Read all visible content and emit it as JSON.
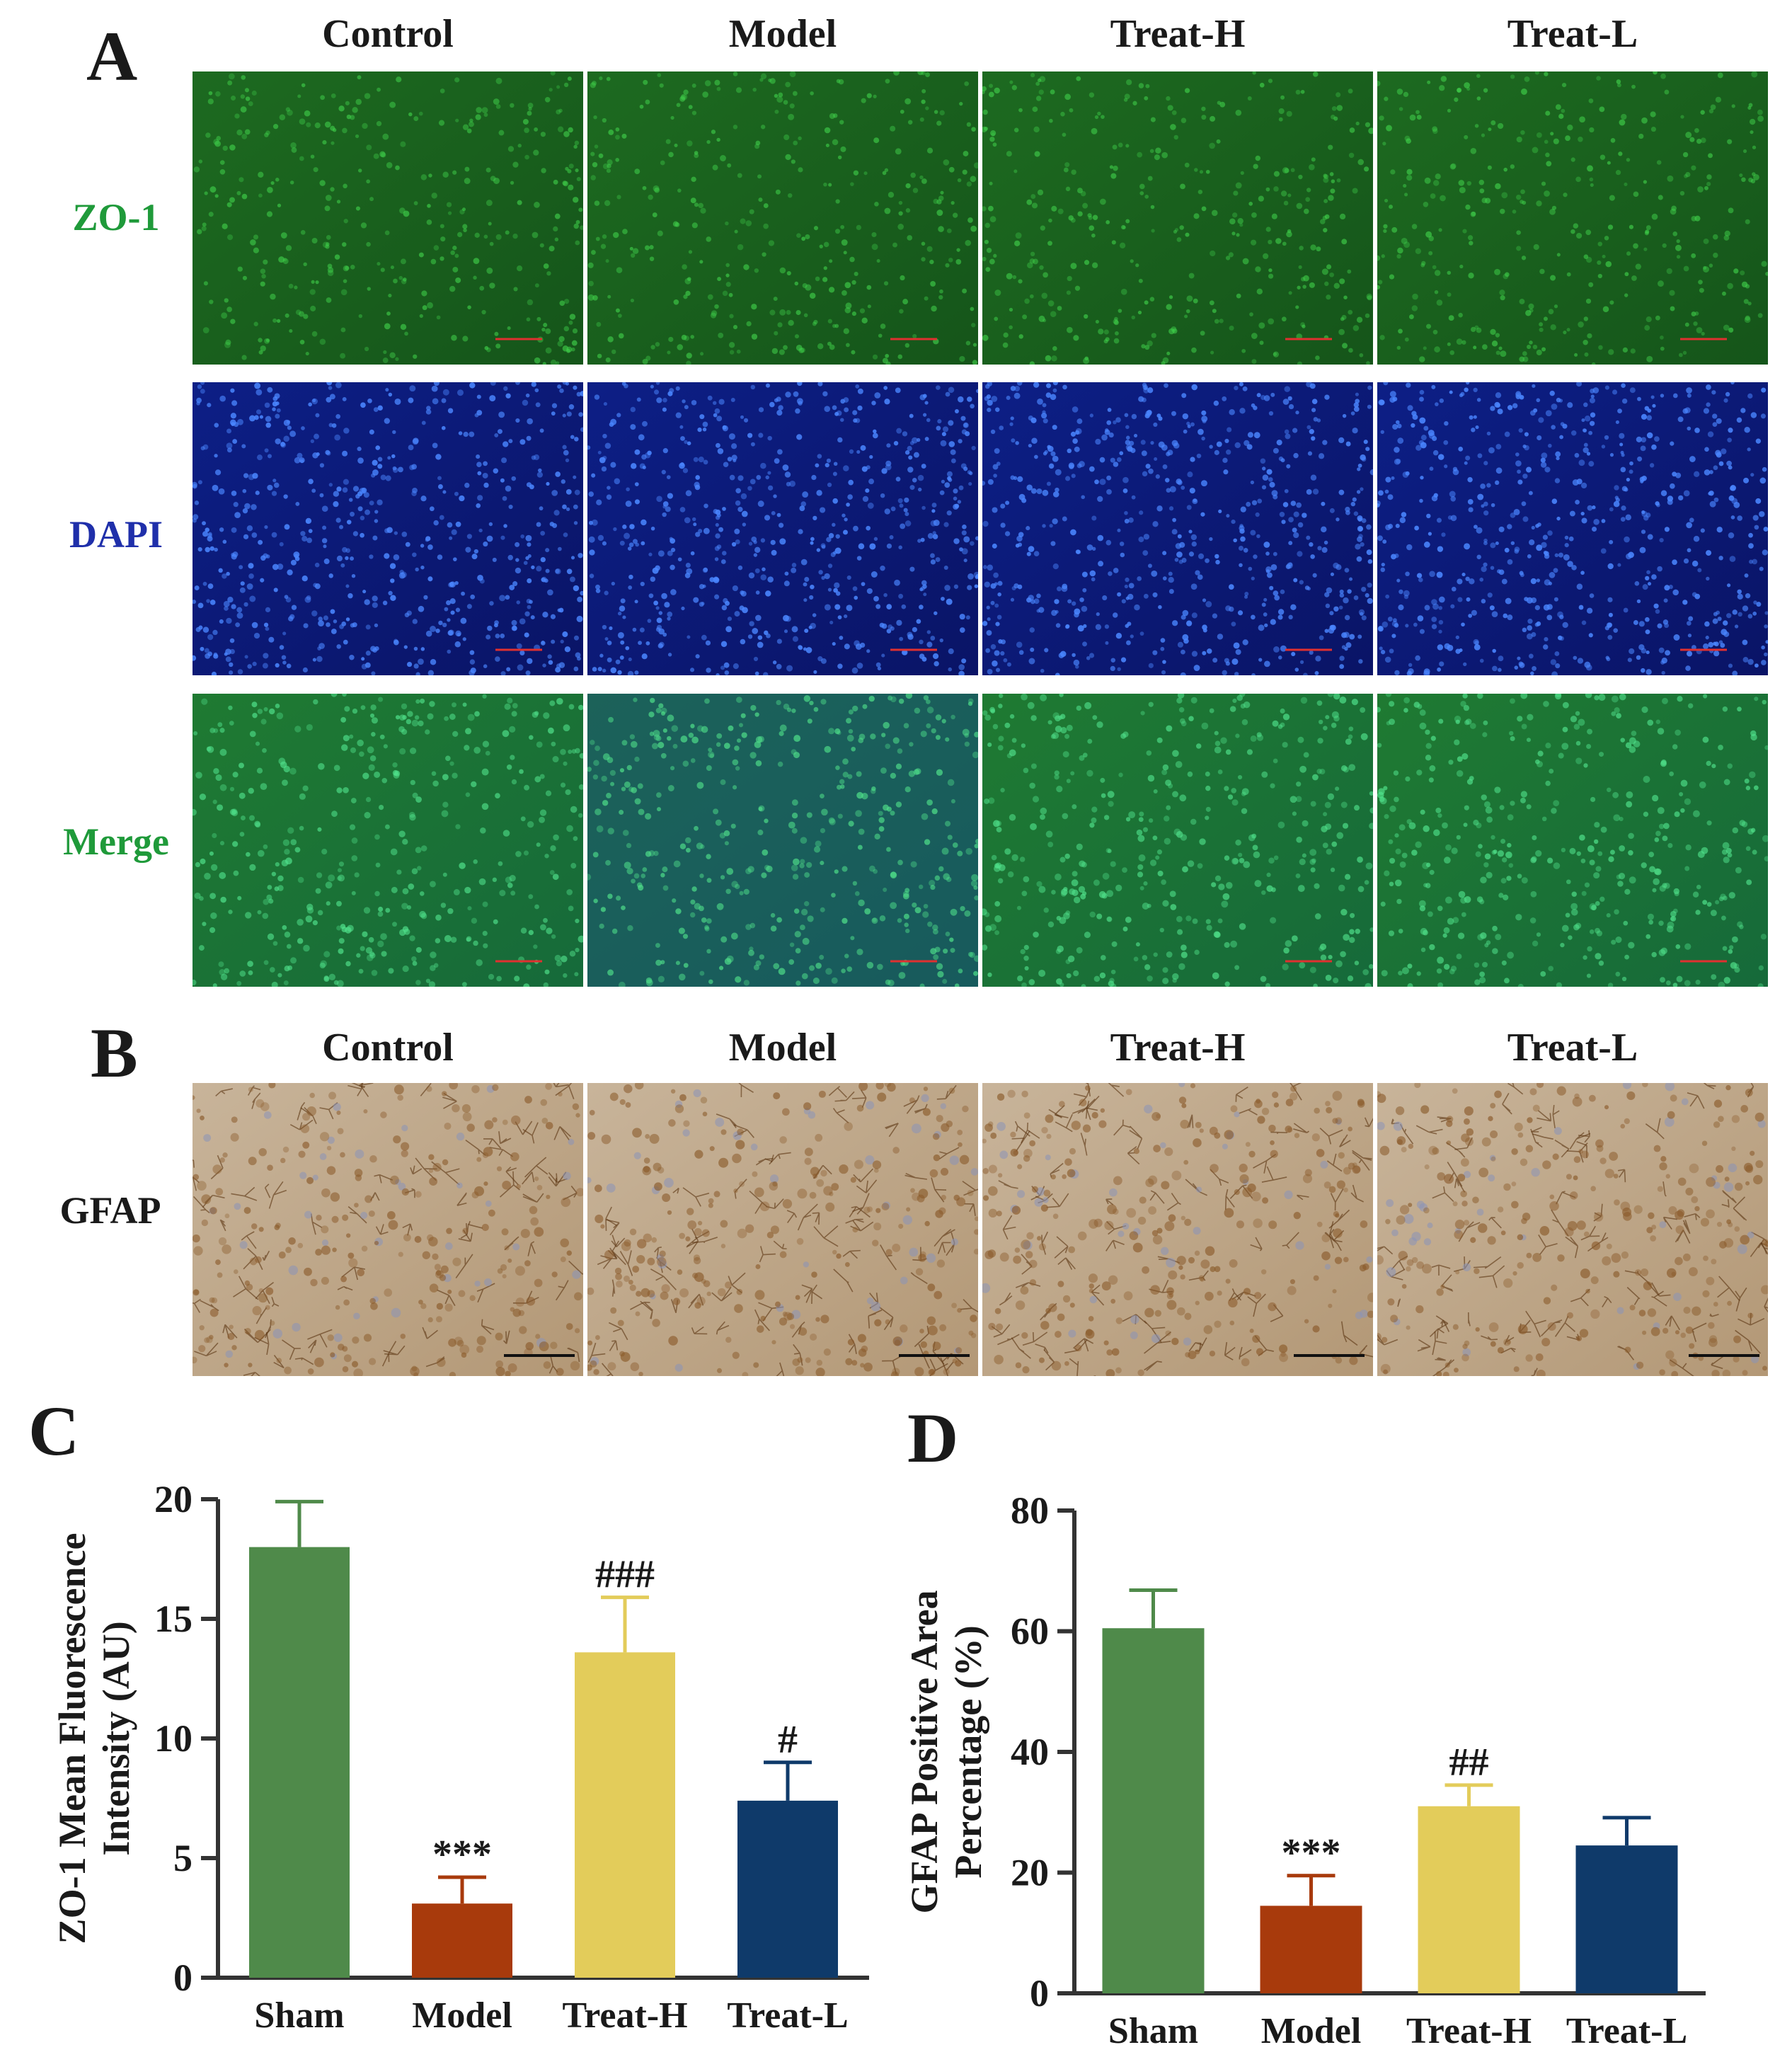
{
  "panel_a": {
    "letter": "A",
    "columns": [
      "Control",
      "Model",
      "Treat-H",
      "Treat-L"
    ],
    "rows": [
      {
        "label": "ZO-1",
        "label_color": "#1f9a3a",
        "stain": "green"
      },
      {
        "label": "DAPI",
        "label_color": "#1f2faa",
        "stain": "blue"
      },
      {
        "label": "Merge",
        "label_color": "#1f9a3a",
        "stain": "merge"
      }
    ]
  },
  "panel_b": {
    "letter": "B",
    "columns": [
      "Control",
      "Model",
      "Treat-H",
      "Treat-L"
    ],
    "rows": [
      {
        "label": "GFAP",
        "label_color": "#1a1a1a",
        "stain": "ihc"
      }
    ]
  },
  "colors": {
    "sham": "#4f8a4a",
    "model": "#a83a0c",
    "treat_h": "#e3cc5a",
    "treat_l": "#0f3a6a"
  },
  "chart_data": [
    {
      "panel_letter": "C",
      "type": "bar",
      "categories": [
        "Sham",
        "Model",
        "Treat-H",
        "Treat-L"
      ],
      "values": [
        18.0,
        3.1,
        13.6,
        7.4
      ],
      "errors": [
        1.9,
        1.1,
        2.3,
        1.6
      ],
      "annotations": [
        "",
        "***",
        "###",
        "#"
      ],
      "ylabel": "ZO-1 Mean Fluorescence Intensity (AU)",
      "ylim": [
        0,
        20
      ],
      "yticks": [
        0,
        5,
        10,
        15,
        20
      ],
      "grid": false
    },
    {
      "panel_letter": "D",
      "type": "bar",
      "categories": [
        "Sham",
        "Model",
        "Treat-H",
        "Treat-L"
      ],
      "values": [
        60.5,
        14.5,
        31.0,
        24.5
      ],
      "errors": [
        6.3,
        5.0,
        3.5,
        4.6
      ],
      "annotations": [
        "",
        "***",
        "##",
        ""
      ],
      "ylabel": "GFAP Positive Area Percentage (%)",
      "ylim": [
        0,
        80
      ],
      "yticks": [
        0,
        20,
        40,
        60,
        80
      ],
      "grid": false
    }
  ]
}
